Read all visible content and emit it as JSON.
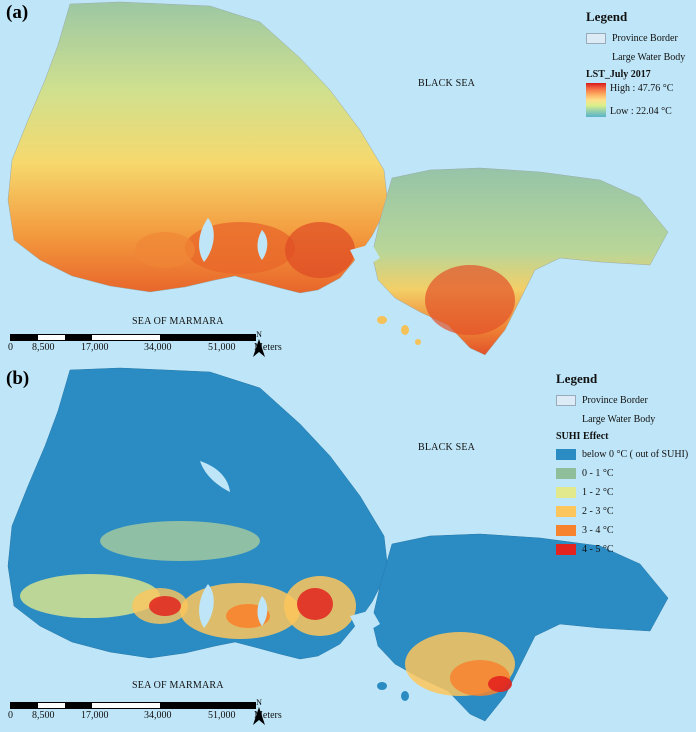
{
  "panels": [
    {
      "label": "(a)",
      "legend": {
        "title": "Legend",
        "province_border": "Province Border",
        "water_body": "Large Water Body",
        "variable": "LST_July 2017",
        "high": "High : 47.76 °C",
        "low": "Low : 22.04 °C"
      },
      "sea_north": "BLACK SEA",
      "sea_south": "SEA OF MARMARA",
      "scale": {
        "ticks": [
          "0",
          "8,500",
          "17,000",
          "34,000",
          "51,000"
        ],
        "unit": "Meters"
      },
      "north": "N"
    },
    {
      "label": "(b)",
      "legend": {
        "title": "Legend",
        "province_border": "Province Border",
        "water_body": "Large Water Body",
        "variable": "SUHI Effect",
        "classes": [
          {
            "label": "below 0 °C ( out of SUHI)",
            "color": "#2b8cc4"
          },
          {
            "label": "0 - 1 °C",
            "color": "#8fbf9a"
          },
          {
            "label": "1 - 2 °C",
            "color": "#e1e98c"
          },
          {
            "label": "2 - 3 °C",
            "color": "#fdc65c"
          },
          {
            "label": "3 - 4 °C",
            "color": "#f7832f"
          },
          {
            "label": "4 - 5 °C",
            "color": "#e3231e"
          }
        ]
      },
      "sea_north": "BLACK SEA",
      "sea_south": "SEA OF MARMARA",
      "scale": {
        "ticks": [
          "0",
          "8,500",
          "17,000",
          "34,000",
          "51,000"
        ],
        "unit": "Meters"
      },
      "north": "N"
    }
  ],
  "colors": {
    "sea": "#bfe6f8",
    "lst_cool": "#93c4a6",
    "lst_mid": "#f2e58a",
    "lst_hot": "#e8702d",
    "lst_max": "#d7261e",
    "suhi_out": "#2b8cc4"
  }
}
